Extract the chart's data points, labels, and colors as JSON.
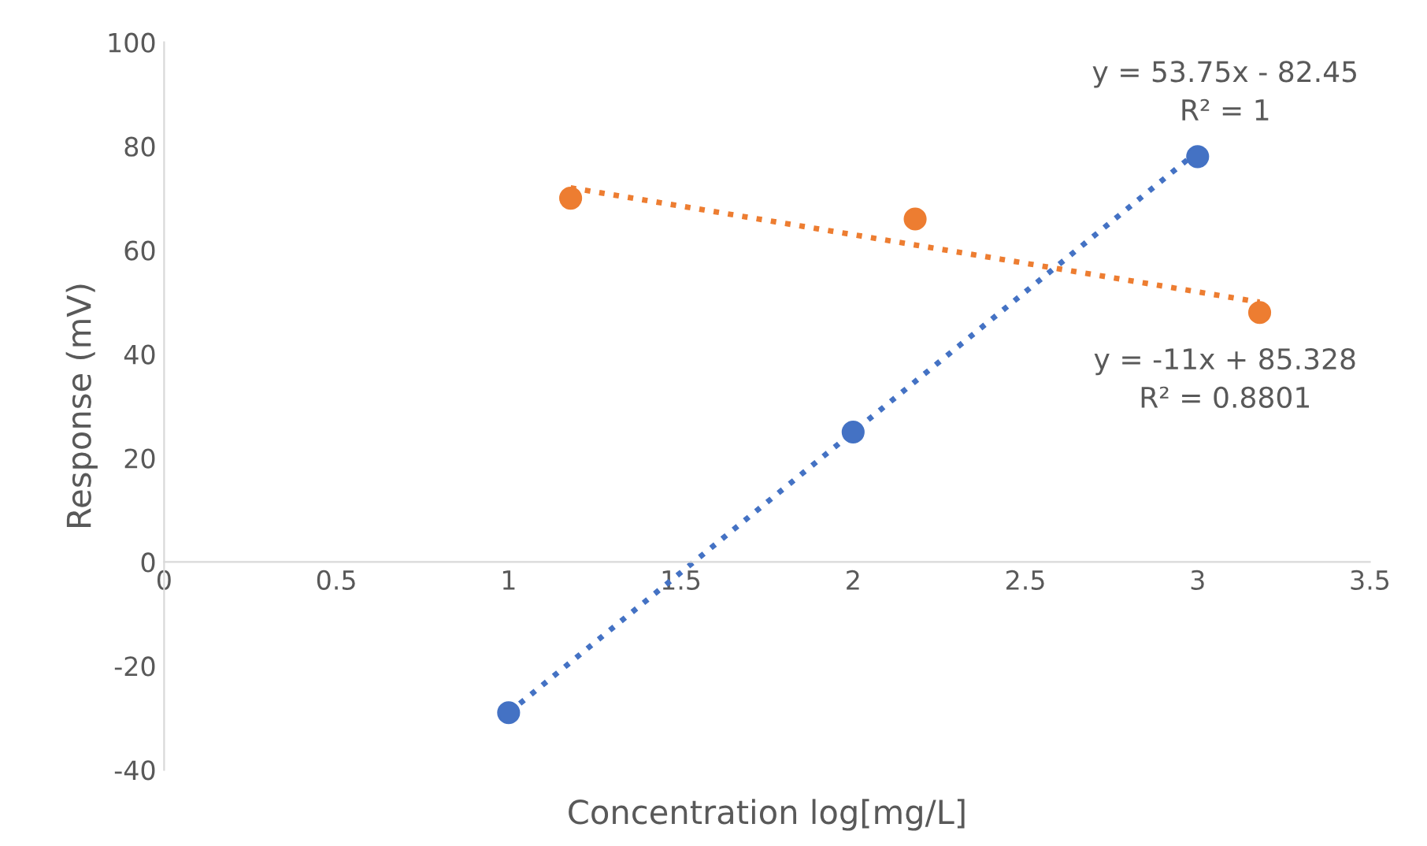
{
  "chart_data": {
    "type": "scatter",
    "xlabel": "Concentration log[mg/L]",
    "ylabel": "Response (mV)",
    "xlim": [
      0,
      3.5
    ],
    "xticks": [
      0,
      0.5,
      1,
      1.5,
      2,
      2.5,
      3,
      3.5
    ],
    "ylim": [
      -40,
      100
    ],
    "yticks": [
      -40,
      -20,
      0,
      20,
      40,
      60,
      80,
      100
    ],
    "grid": false,
    "legend": false,
    "marker": "circle",
    "series": [
      {
        "color": "#4472c4",
        "x": [
          1,
          2,
          3
        ],
        "values": [
          -29,
          25,
          78
        ]
      },
      {
        "color": "#ed7d31",
        "x": [
          1.18,
          2.18,
          3.18
        ],
        "values": [
          70,
          66,
          48
        ]
      },
      {
        "type": "line",
        "color": "#4472c4",
        "line_style": "dotted",
        "marker": "none",
        "x": [
          1,
          3
        ],
        "values": [
          -29,
          79
        ]
      },
      {
        "type": "line",
        "color": "#ed7d31",
        "line_style": "dotted",
        "marker": "none",
        "x": [
          1.18,
          3.18
        ],
        "values": [
          72,
          50
        ]
      }
    ],
    "annotations": [
      "y = 53.75x - 82.45\nR² = 1",
      "y = -11x + 85.328\nR² = 0.8801"
    ]
  }
}
